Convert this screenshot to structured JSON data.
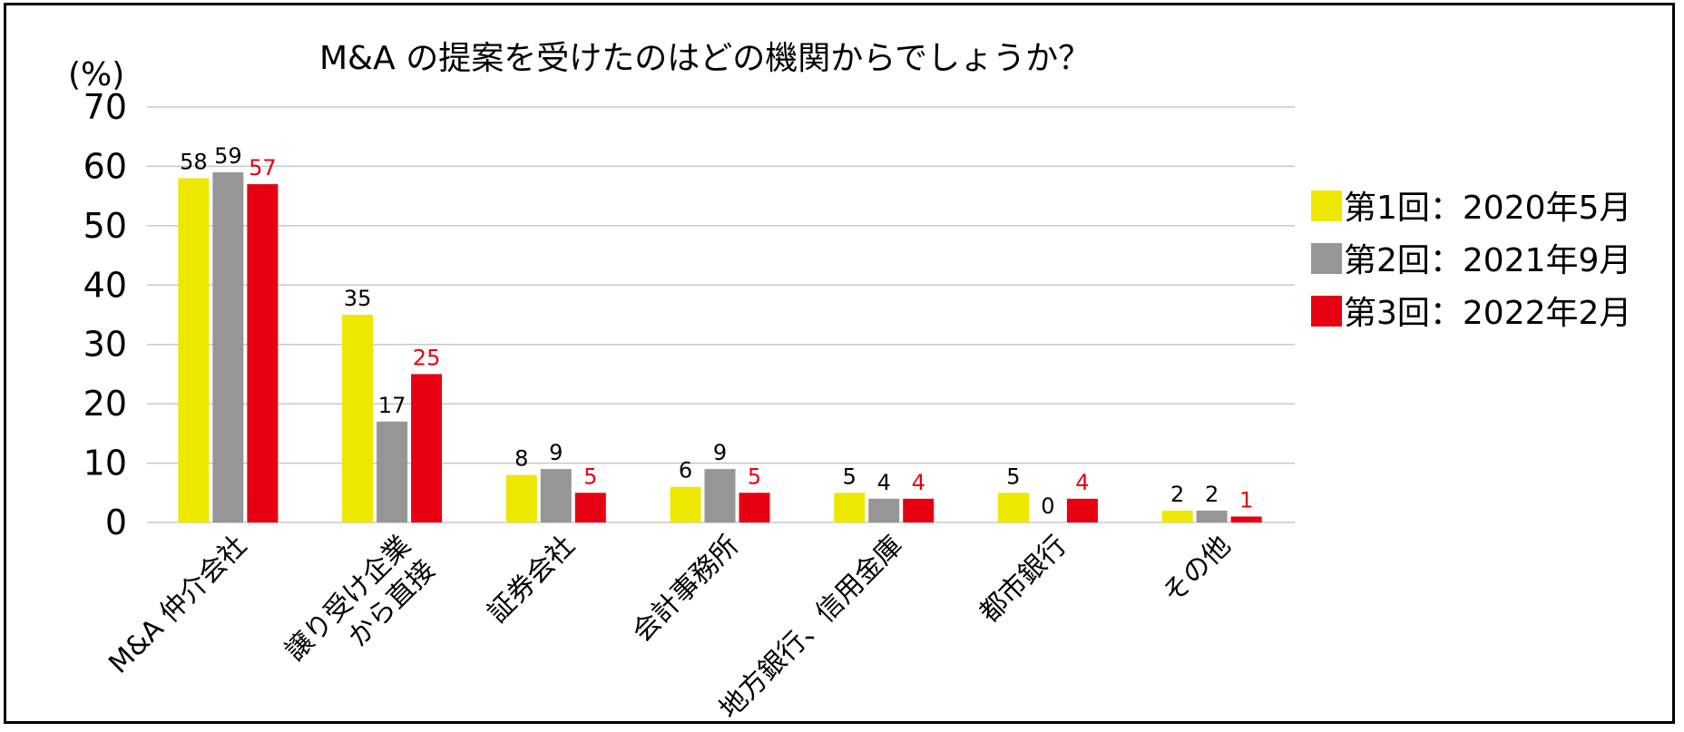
{
  "chart_data": {
    "type": "bar",
    "title": "M&A の提案を受けたのはどの機関からでしょうか？",
    "ylabel": "(%)",
    "ylim": [
      0,
      70
    ],
    "yticks": [
      0,
      10,
      20,
      30,
      40,
      50,
      60,
      70
    ],
    "grid": true,
    "legend_position": "right",
    "categories": [
      [
        "M&A 仲介会社"
      ],
      [
        "譲り受け企業",
        "から直接"
      ],
      [
        "証券会社"
      ],
      [
        "会計事務所"
      ],
      [
        "地方銀行、信用金庫"
      ],
      [
        "都市銀行"
      ],
      [
        "その他"
      ]
    ],
    "series": [
      {
        "name": "第1回：2020年5月",
        "color": "#eee800",
        "label_color": "#000000",
        "values": [
          58,
          35,
          8,
          6,
          5,
          5,
          2
        ]
      },
      {
        "name": "第2回：2021年9月",
        "color": "#969696",
        "label_color": "#000000",
        "values": [
          59,
          17,
          9,
          9,
          4,
          0,
          2
        ]
      },
      {
        "name": "第3回：2022年2月",
        "color": "#e60012",
        "label_color": "#e60012",
        "values": [
          57,
          25,
          5,
          5,
          4,
          4,
          1
        ]
      }
    ]
  }
}
